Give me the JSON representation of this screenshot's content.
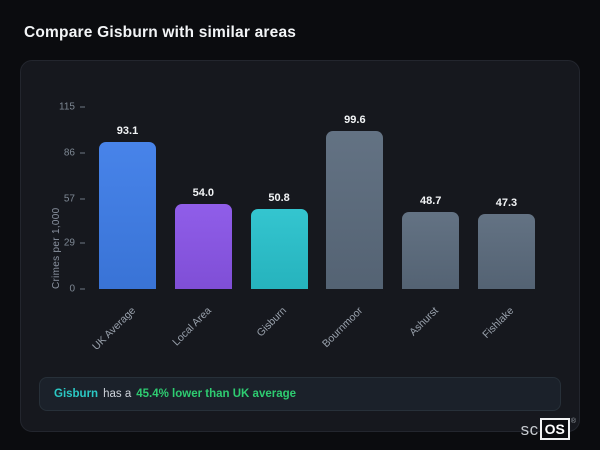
{
  "page": {
    "title": "Compare Gisburn with similar areas"
  },
  "chart_data": {
    "type": "bar",
    "categories": [
      "UK Average",
      "Local Area",
      "Gisburn",
      "Bournmoor",
      "Ashurst",
      "Fishlake"
    ],
    "values": [
      93.1,
      54.0,
      50.8,
      99.6,
      48.7,
      47.3
    ],
    "value_labels": [
      "93.1",
      "54.0",
      "50.8",
      "99.6",
      "48.7",
      "47.3"
    ],
    "bar_colors": [
      "#3e7de8",
      "#8a55e8",
      "#29c2cd",
      "#5b6b7d",
      "#5b6b7d",
      "#5b6b7d"
    ],
    "title": "",
    "xlabel": "",
    "ylabel": "Crimes per 1,000",
    "yticks": [
      0,
      29,
      57,
      86,
      115
    ],
    "ylim": [
      0,
      115
    ],
    "grid": false,
    "legend": false
  },
  "summary": {
    "area": "Gisburn",
    "connector": "has a",
    "highlight": "45.4% lower than UK average"
  },
  "logo": {
    "prefix": "sc",
    "boxed": "OS",
    "registered": "®"
  },
  "colors": {
    "background": "#0b0c0f",
    "card": "#16181e",
    "accent_blue": "#3e7de8",
    "accent_purple": "#8a55e8",
    "accent_teal": "#29c2cd",
    "neutral_bar": "#5b6b7d",
    "positive_green": "#2ecc71"
  }
}
